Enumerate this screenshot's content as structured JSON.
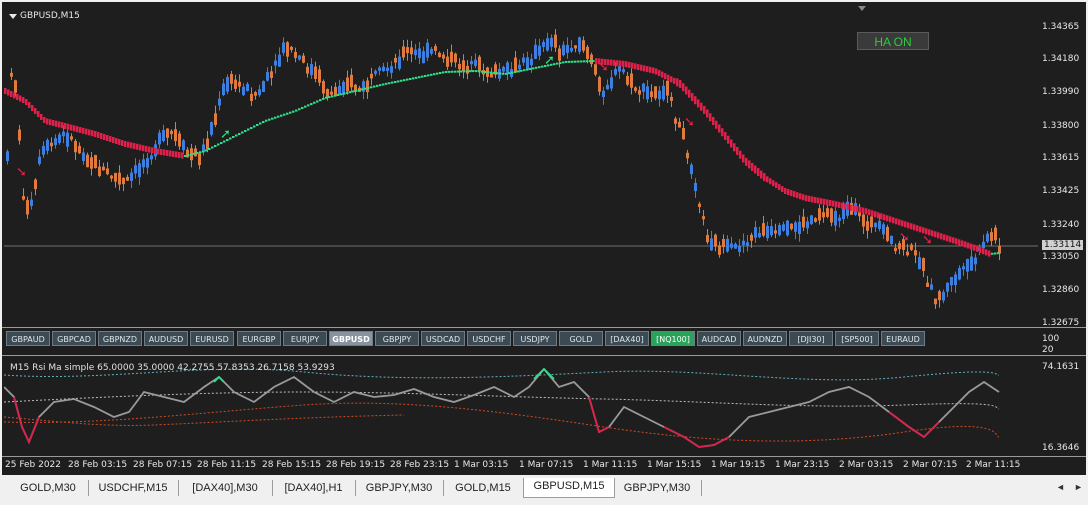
{
  "chart": {
    "symbol_title": "GBPUSD,M15",
    "ha_button": "HA ON",
    "price_labels": [
      "1.34365",
      "1.34180",
      "1.33990",
      "1.33800",
      "1.33615",
      "1.33425",
      "1.33240",
      "1.33114",
      "1.33050",
      "1.32860",
      "1.32675"
    ],
    "current_price": "1.33114"
  },
  "symbols": {
    "items": [
      "GBPAUD",
      "GBPCAD",
      "GBPNZD",
      "AUDUSD",
      "EURUSD",
      "EURGBP",
      "EURJPY",
      "GBPUSD",
      "GBPJPY",
      "USDCAD",
      "USDCHF",
      "USDJPY",
      "GOLD",
      "[DAX40]",
      "[NQ100]",
      "AUDCAD",
      "AUDNZD",
      "[DJI30]",
      "[SP500]",
      "EURAUD"
    ],
    "active": "GBPUSD",
    "highlight": "[NQ100]"
  },
  "indicator": {
    "title": "M15 Rsi Ma simple 65.0000 35.0000 42.2755 57.8353 26.7158 53.9293",
    "scale_top": "74.1631",
    "scale_bottom": "16.3646",
    "small_scale_100": "100",
    "small_scale_20": "20"
  },
  "time_axis": [
    "25 Feb 2022",
    "28 Feb 03:15",
    "28 Feb 07:15",
    "28 Feb 11:15",
    "28 Feb 15:15",
    "28 Feb 19:15",
    "28 Feb 23:15",
    "1 Mar 03:15",
    "1 Mar 07:15",
    "1 Mar 11:15",
    "1 Mar 15:15",
    "1 Mar 19:15",
    "1 Mar 23:15",
    "2 Mar 03:15",
    "2 Mar 07:15",
    "2 Mar 11:15"
  ],
  "tabs": {
    "items": [
      "GOLD,M30",
      "USDCHF,M15",
      "[DAX40],M30",
      "[DAX40],H1",
      "GBPJPY,M30",
      "GOLD,M15",
      "GBPUSD,M15",
      "GBPJPY,M30"
    ],
    "active": "GBPUSD,M15"
  },
  "colors": {
    "bull": "#3d7fe0",
    "bear": "#e07a3d",
    "ha_up": "#2ee08a",
    "ha_down": "#e0204a"
  }
}
